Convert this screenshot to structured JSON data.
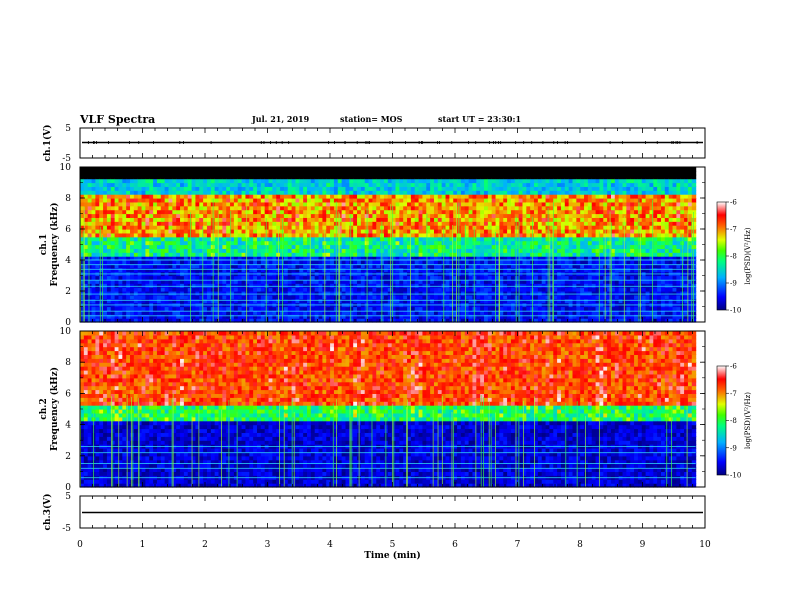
{
  "header": {
    "title": "VLF Spectra",
    "date": "Jul. 21, 2019",
    "station": "station= MOS",
    "start_ut": "start UT =  23:30:1"
  },
  "chart_data": [
    {
      "type": "line",
      "name": "ch1-waveform",
      "ylabel": "ch.1(V)",
      "ylim": [
        -5,
        5
      ],
      "yticks": [
        "5",
        "-5"
      ],
      "xlim": [
        0,
        10
      ],
      "level": 0
    },
    {
      "type": "heatmap",
      "name": "ch1-spectrogram",
      "ylabel": "ch.1\nFrequency (kHz)",
      "ylim": [
        0,
        10
      ],
      "yticks": [
        "0",
        "2",
        "4",
        "6",
        "8",
        "10"
      ],
      "xlim": [
        0,
        9.85
      ],
      "band_saturated_khz": [
        9.0,
        10.0
      ],
      "band_peak_khz": [
        6.0,
        7.8
      ],
      "hlines_khz": [
        0.4,
        0.7,
        1.1,
        1.4,
        1.8,
        2.3,
        2.7,
        3.1,
        3.4,
        3.7,
        4.0
      ],
      "colorbar": {
        "label": "log(PSD)(V²/Hz)",
        "ticks": [
          "-6",
          "-7",
          "-8",
          "-9",
          "-10"
        ],
        "range": [
          -10,
          -6
        ]
      }
    },
    {
      "type": "heatmap",
      "name": "ch2-spectrogram",
      "ylabel": "ch.2\nFrequency (kHz)",
      "ylim": [
        0,
        10
      ],
      "yticks": [
        "0",
        "2",
        "4",
        "6",
        "8",
        "10"
      ],
      "xlim": [
        0,
        9.85
      ],
      "band_peak_khz": [
        5.0,
        10.0
      ],
      "hlines_khz": [
        0.6,
        1.2,
        1.5,
        2.2,
        2.6
      ],
      "colorbar": {
        "label": "log(PSD)(V²/Hz)",
        "ticks": [
          "-6",
          "-7",
          "-8",
          "-9",
          "-10"
        ],
        "range": [
          -10,
          -6
        ]
      }
    },
    {
      "type": "line",
      "name": "ch3-waveform",
      "ylabel": "ch.3(V)",
      "ylim": [
        -5,
        5
      ],
      "yticks": [
        "5",
        "-5"
      ],
      "xlim": [
        0,
        10
      ],
      "level": 0,
      "xlabel": "Time (min)",
      "xticks": [
        "0",
        "1",
        "2",
        "3",
        "4",
        "5",
        "6",
        "7",
        "8",
        "9",
        "10"
      ]
    }
  ],
  "colors": {
    "scale": [
      "#000060",
      "#0000ff",
      "#00a0ff",
      "#00ffb0",
      "#30ff00",
      "#e0ff00",
      "#ff8000",
      "#ff0000",
      "#ff8080",
      "#ffffff"
    ]
  }
}
